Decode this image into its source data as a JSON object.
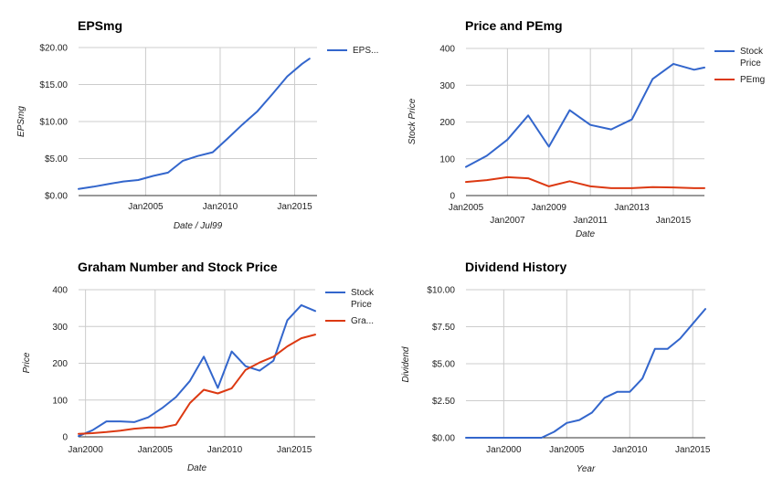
{
  "colors": {
    "blue": "#3366cc",
    "red": "#dc3912"
  },
  "chart_data": [
    {
      "type": "line",
      "title": "EPSmg",
      "xlabel": "Date / Jul99",
      "ylabel": "EPSmg",
      "xlim": [
        2000.5,
        2016.5
      ],
      "ylim": [
        0,
        20
      ],
      "x_ticks": [
        {
          "value": 2005,
          "label": "Jan2005"
        },
        {
          "value": 2010,
          "label": "Jan2010"
        },
        {
          "value": 2015,
          "label": "Jan2015"
        }
      ],
      "y_ticks": [
        {
          "value": 0,
          "label": "$0.00"
        },
        {
          "value": 5,
          "label": "$5.00"
        },
        {
          "value": 10,
          "label": "$10.00"
        },
        {
          "value": 15,
          "label": "$15.00"
        },
        {
          "value": 20,
          "label": "$20.00"
        }
      ],
      "grid": true,
      "legend_position": "right",
      "series": [
        {
          "name": "EPS...",
          "color": "#3366cc",
          "x": [
            2000.5,
            2001.5,
            2002.5,
            2003.5,
            2004.5,
            2005.5,
            2006.5,
            2007.5,
            2008.5,
            2009.5,
            2010.5,
            2011.5,
            2012.5,
            2013.5,
            2014.5,
            2015.5,
            2016.0
          ],
          "y": [
            0.9,
            1.2,
            1.55,
            1.9,
            2.1,
            2.65,
            3.1,
            4.7,
            5.35,
            5.85,
            7.7,
            9.6,
            11.4,
            13.7,
            16.1,
            17.8,
            18.5
          ]
        }
      ]
    },
    {
      "type": "line",
      "title": "Price and PEmg",
      "xlabel": "Date",
      "ylabel": "Stock Price",
      "xlim": [
        2005,
        2016.5
      ],
      "ylim": [
        0,
        400
      ],
      "x_ticks": [
        {
          "value": 2005,
          "label": "Jan2005"
        },
        {
          "value": 2007,
          "label": "Jan2007"
        },
        {
          "value": 2009,
          "label": "Jan2009"
        },
        {
          "value": 2011,
          "label": "Jan2011"
        },
        {
          "value": 2013,
          "label": "Jan2013"
        },
        {
          "value": 2015,
          "label": "Jan2015"
        }
      ],
      "y_ticks": [
        {
          "value": 0,
          "label": "0"
        },
        {
          "value": 100,
          "label": "100"
        },
        {
          "value": 200,
          "label": "200"
        },
        {
          "value": 300,
          "label": "300"
        },
        {
          "value": 400,
          "label": "400"
        }
      ],
      "grid": true,
      "legend_position": "right",
      "series": [
        {
          "name": "Stock Price",
          "color": "#3366cc",
          "x": [
            2005,
            2006,
            2007,
            2008,
            2009,
            2010,
            2011,
            2012,
            2013,
            2014,
            2015,
            2016,
            2016.5
          ],
          "y": [
            78,
            108,
            152,
            218,
            133,
            232,
            192,
            180,
            207,
            317,
            358,
            342,
            348
          ]
        },
        {
          "name": "PEmg",
          "color": "#dc3912",
          "x": [
            2005,
            2006,
            2007,
            2008,
            2009,
            2010,
            2011,
            2012,
            2013,
            2014,
            2015,
            2016,
            2016.5
          ],
          "y": [
            37,
            42,
            50,
            47,
            25,
            39,
            25,
            20,
            20,
            23,
            22,
            20,
            20
          ]
        }
      ]
    },
    {
      "type": "line",
      "title": "Graham Number and Stock Price",
      "xlabel": "Date",
      "ylabel": "Price",
      "xlim": [
        1999.5,
        2016.5
      ],
      "ylim": [
        0,
        400
      ],
      "x_ticks": [
        {
          "value": 2000,
          "label": "Jan2000"
        },
        {
          "value": 2005,
          "label": "Jan2005"
        },
        {
          "value": 2010,
          "label": "Jan2010"
        },
        {
          "value": 2015,
          "label": "Jan2015"
        }
      ],
      "y_ticks": [
        {
          "value": 0,
          "label": "0"
        },
        {
          "value": 100,
          "label": "100"
        },
        {
          "value": 200,
          "label": "200"
        },
        {
          "value": 300,
          "label": "300"
        },
        {
          "value": 400,
          "label": "400"
        }
      ],
      "grid": true,
      "legend_position": "right",
      "series": [
        {
          "name": "Stock Price",
          "color": "#3366cc",
          "x": [
            1999.5,
            2000.5,
            2001.5,
            2002.5,
            2003.5,
            2004.5,
            2005.5,
            2006.5,
            2007.5,
            2008.5,
            2009.5,
            2010.5,
            2011.5,
            2012.5,
            2013.5,
            2014.5,
            2015.5,
            2016.5
          ],
          "y": [
            2,
            18,
            42,
            42,
            40,
            53,
            78,
            108,
            152,
            218,
            133,
            232,
            192,
            180,
            207,
            317,
            358,
            342
          ]
        },
        {
          "name": "Gra...",
          "color": "#dc3912",
          "x": [
            1999.5,
            2000.5,
            2001.5,
            2002.5,
            2003.5,
            2004.5,
            2005.5,
            2006.5,
            2007.5,
            2008.5,
            2009.5,
            2010.5,
            2011.5,
            2012.5,
            2013.5,
            2014.5,
            2015.5,
            2016.5
          ],
          "y": [
            8,
            10,
            13,
            17,
            22,
            25,
            25,
            33,
            92,
            128,
            118,
            132,
            182,
            202,
            218,
            246,
            268,
            278
          ]
        }
      ]
    },
    {
      "type": "line",
      "title": "Dividend History",
      "xlabel": "Year",
      "ylabel": "Dividend",
      "xlim": [
        1997,
        2016
      ],
      "ylim": [
        0,
        10
      ],
      "x_ticks": [
        {
          "value": 2000,
          "label": "Jan2000"
        },
        {
          "value": 2005,
          "label": "Jan2005"
        },
        {
          "value": 2010,
          "label": "Jan2010"
        },
        {
          "value": 2015,
          "label": "Jan2015"
        }
      ],
      "y_ticks": [
        {
          "value": 0,
          "label": "$0.00"
        },
        {
          "value": 2.5,
          "label": "$2.50"
        },
        {
          "value": 5,
          "label": "$5.00"
        },
        {
          "value": 7.5,
          "label": "$7.50"
        },
        {
          "value": 10,
          "label": "$10.00"
        }
      ],
      "grid": true,
      "legend_position": "none",
      "series": [
        {
          "color": "#3366cc",
          "x": [
            1997,
            1998,
            1999,
            2000,
            2001,
            2002,
            2003,
            2004,
            2005,
            2006,
            2007,
            2008,
            2009,
            2010,
            2011,
            2012,
            2013,
            2014,
            2015,
            2016
          ],
          "y": [
            0,
            0,
            0,
            0,
            0,
            0,
            0,
            0.4,
            1.0,
            1.2,
            1.7,
            2.7,
            3.1,
            3.1,
            4.0,
            6.0,
            6.0,
            6.7,
            7.7,
            8.7
          ]
        }
      ]
    }
  ]
}
